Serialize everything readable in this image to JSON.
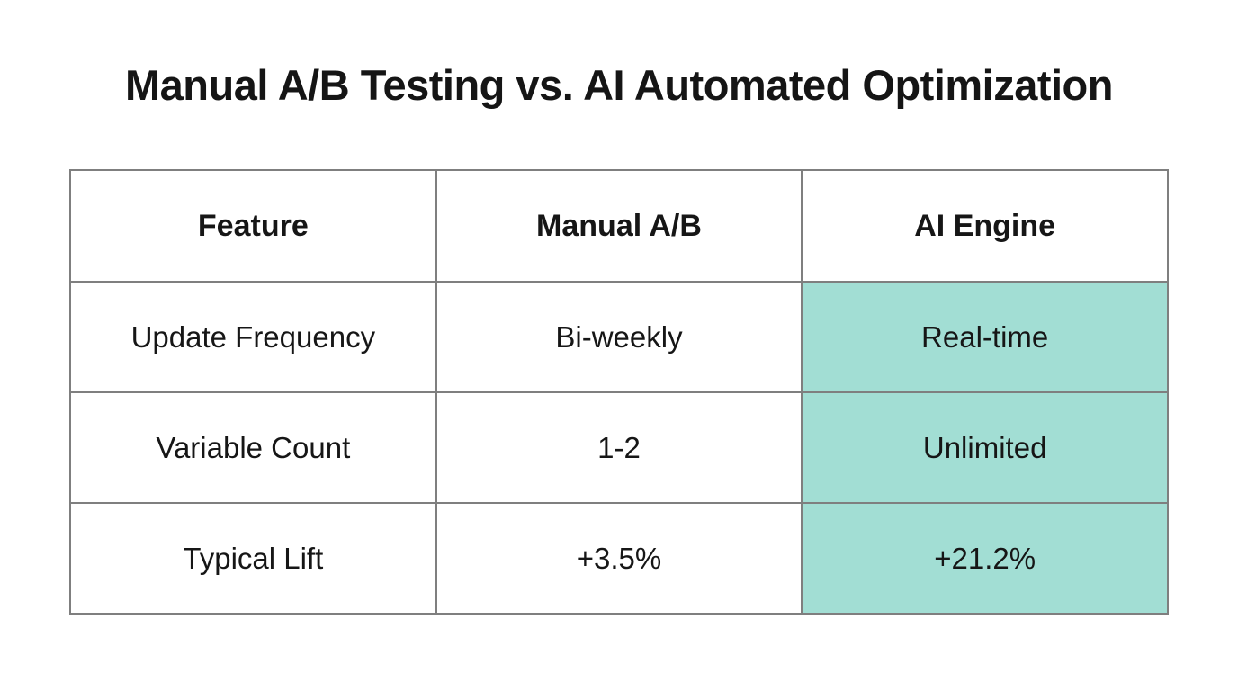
{
  "title": "Manual A/B Testing vs. AI Automated Optimization",
  "chart_data": {
    "type": "table",
    "title": "Manual A/B Testing vs. AI Automated Optimization",
    "columns": [
      "Feature",
      "Manual A/B",
      "AI Engine"
    ],
    "rows": [
      [
        "Update Frequency",
        "Bi-weekly",
        "Real-time"
      ],
      [
        "Variable Count",
        "1-2",
        "Unlimited"
      ],
      [
        "Typical Lift",
        "+3.5%",
        "+21.2%"
      ]
    ],
    "highlighted_column": "AI Engine",
    "highlight_color": "#a2ded4",
    "border_color": "#7f7f7f",
    "background_color": "#ffffff",
    "text_color": "#161616"
  }
}
